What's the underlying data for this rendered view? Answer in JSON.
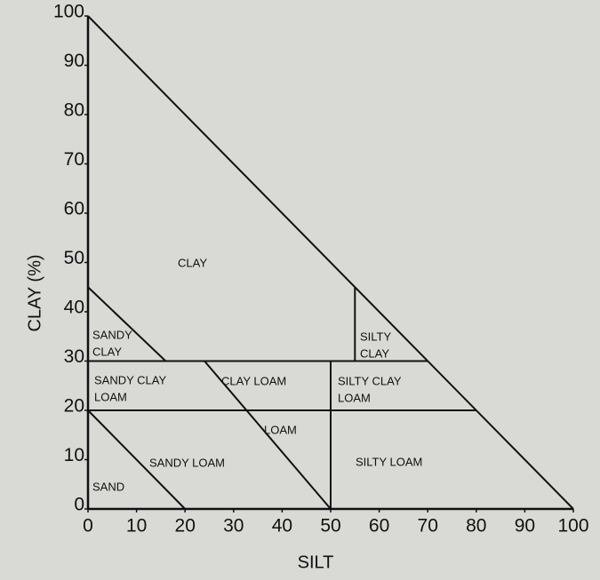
{
  "chart_data": {
    "type": "texture-triangle",
    "xlabel": "SILT",
    "ylabel": "CLAY (%)",
    "xlim": [
      0,
      100
    ],
    "ylim": [
      0,
      100
    ],
    "xticks": [
      0,
      10,
      20,
      30,
      40,
      50,
      60,
      70,
      80,
      90,
      100
    ],
    "yticks": [
      0,
      10,
      20,
      30,
      40,
      50,
      60,
      70,
      80,
      90,
      100
    ],
    "color": "#111111",
    "boundaries": [
      {
        "x": [
          0,
          100
        ],
        "y": [
          100,
          0
        ]
      },
      {
        "x": [
          0,
          16
        ],
        "y": [
          45,
          30
        ]
      },
      {
        "x": [
          0,
          70
        ],
        "y": [
          30,
          30
        ]
      },
      {
        "x": [
          0,
          80
        ],
        "y": [
          20,
          20
        ]
      },
      {
        "x": [
          0,
          20
        ],
        "y": [
          20,
          0
        ]
      },
      {
        "x": [
          24,
          50
        ],
        "y": [
          30,
          0
        ]
      },
      {
        "x": [
          55,
          55
        ],
        "y": [
          45,
          30
        ]
      },
      {
        "x": [
          50,
          50
        ],
        "y": [
          30,
          0
        ]
      }
    ],
    "regions": [
      [
        "CLAY"
      ],
      [
        "SANDY",
        "CLAY"
      ],
      [
        "SILTY",
        "CLAY"
      ],
      [
        "SANDY CLAY",
        "LOAM"
      ],
      [
        "CLAY LOAM"
      ],
      [
        "SILTY CLAY",
        "LOAM"
      ],
      [
        "LOAM"
      ],
      [
        "SANDY LOAM"
      ],
      [
        "SILTY LOAM"
      ],
      [
        "SAND"
      ]
    ]
  }
}
